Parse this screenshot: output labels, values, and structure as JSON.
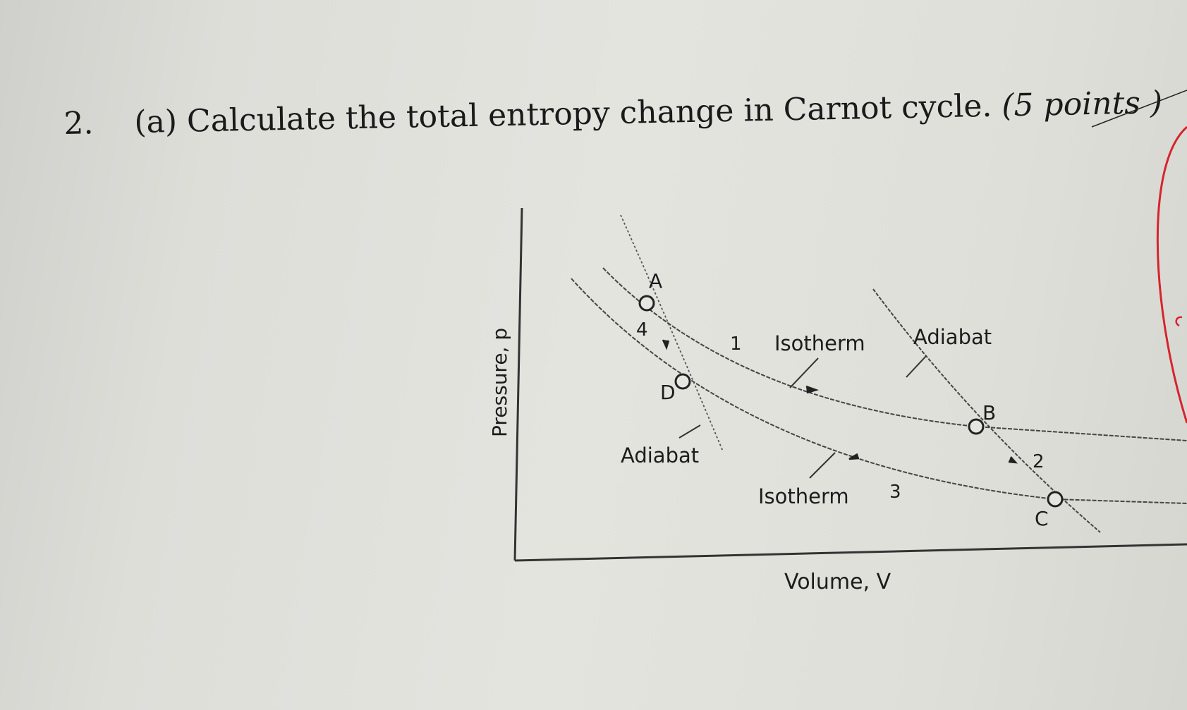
{
  "question": {
    "number": "2.",
    "part": "(a)",
    "text": "Calculate the total entropy change in Carnot cycle.",
    "points": "(5 points )"
  },
  "diagram": {
    "y_axis_label": "Pressure, p",
    "x_axis_label": "Volume, V",
    "points": {
      "a": "A",
      "b": "B",
      "c": "C",
      "d": "D"
    },
    "steps": {
      "s1": "1",
      "s2": "2",
      "s3": "3",
      "s4": "4"
    },
    "curve_labels": {
      "isotherm_top": "Isotherm",
      "isotherm_bottom": "Isotherm",
      "adiabat_right": "Adiabat",
      "adiabat_left": "Adiabat"
    }
  },
  "colors": {
    "ink": "#1c1c1c",
    "paper": "#e2e2dd",
    "pen_mark": "#d6242e"
  }
}
